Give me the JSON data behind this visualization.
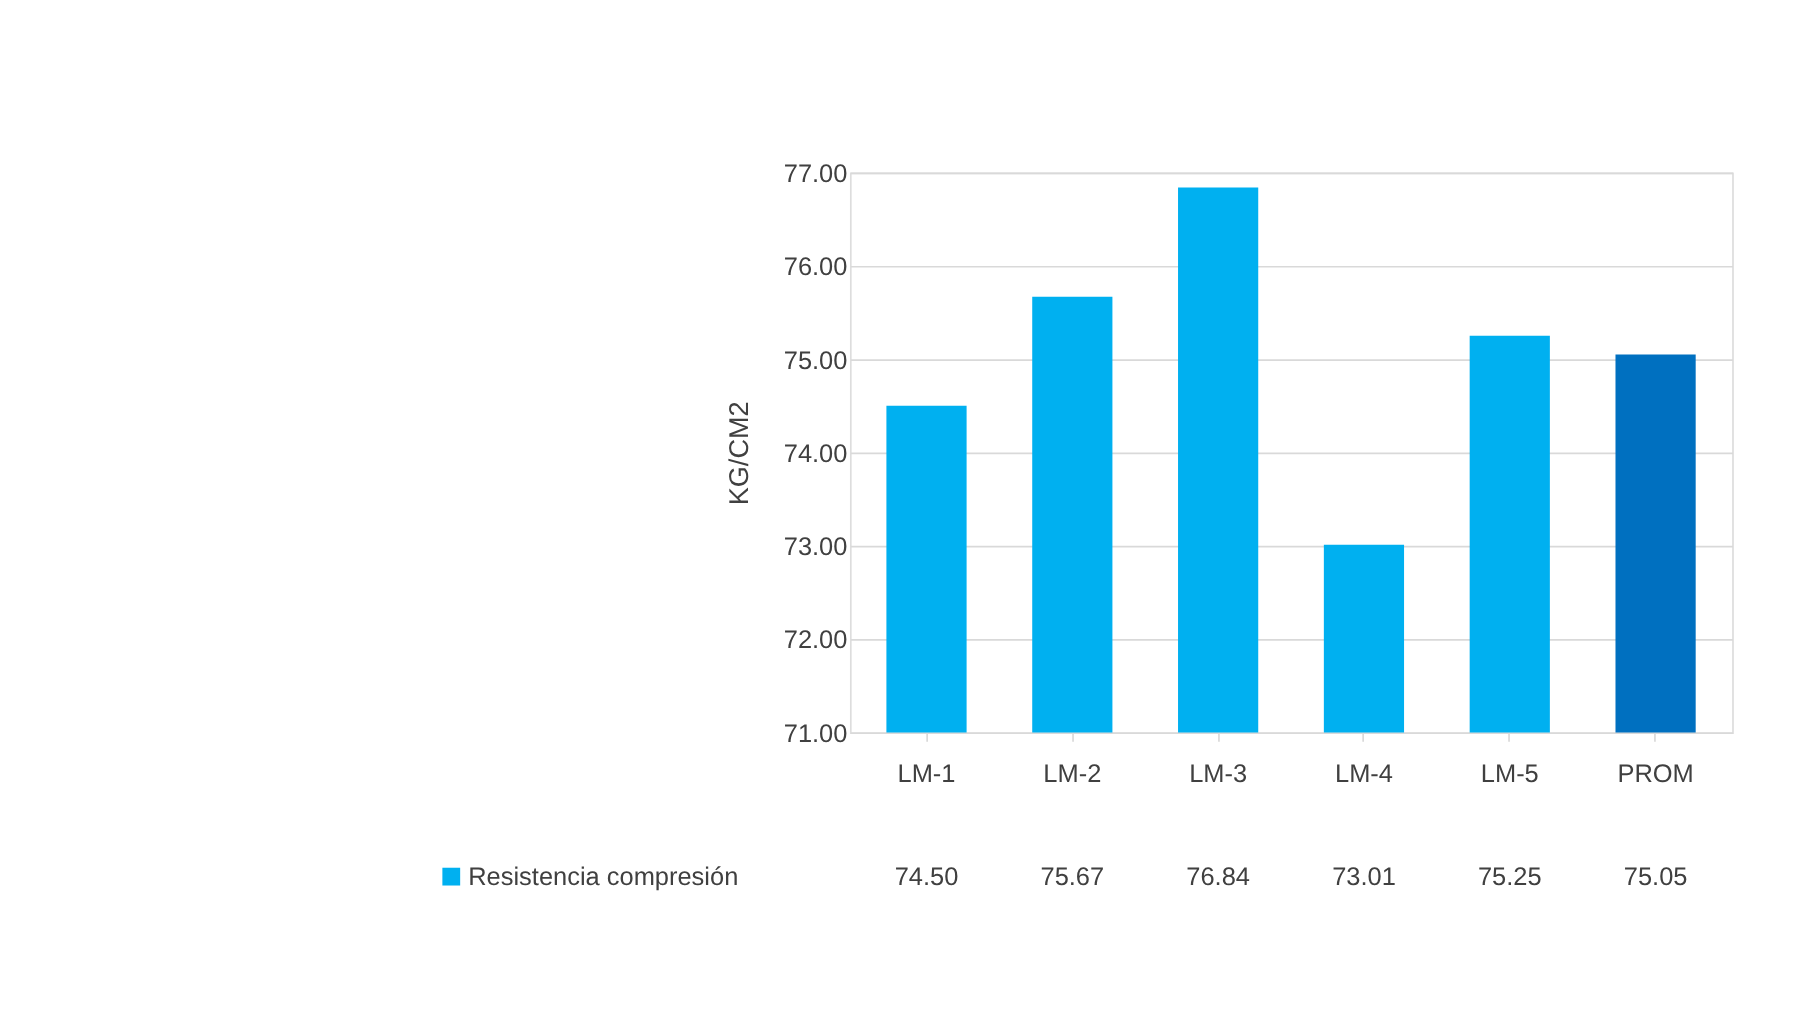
{
  "chart_data": {
    "type": "bar",
    "ylabel": "KG/CM2",
    "categories": [
      "LM-1",
      "LM-2",
      "LM-3",
      "LM-4",
      "LM-5",
      "PROM"
    ],
    "series": [
      {
        "name": "Resistencia compresión",
        "color": "#00b0f0",
        "colors": [
          "#00b0f0",
          "#00b0f0",
          "#00b0f0",
          "#00b0f0",
          "#00b0f0",
          "#0070c0"
        ],
        "values": [
          74.5,
          75.67,
          76.84,
          73.01,
          75.25,
          75.05
        ],
        "value_labels": [
          "74.50",
          "75.67",
          "76.84",
          "73.01",
          "75.25",
          "75.05"
        ]
      }
    ],
    "ylim": [
      71,
      77
    ],
    "yticks": [
      {
        "value": 71,
        "label": "71.00"
      },
      {
        "value": 72,
        "label": "72.00"
      },
      {
        "value": 73,
        "label": "73.00"
      },
      {
        "value": 74,
        "label": "74.00"
      },
      {
        "value": 75,
        "label": "75.00"
      },
      {
        "value": 76,
        "label": "76.00"
      },
      {
        "value": 77,
        "label": "77.00"
      }
    ],
    "grid": "y"
  }
}
